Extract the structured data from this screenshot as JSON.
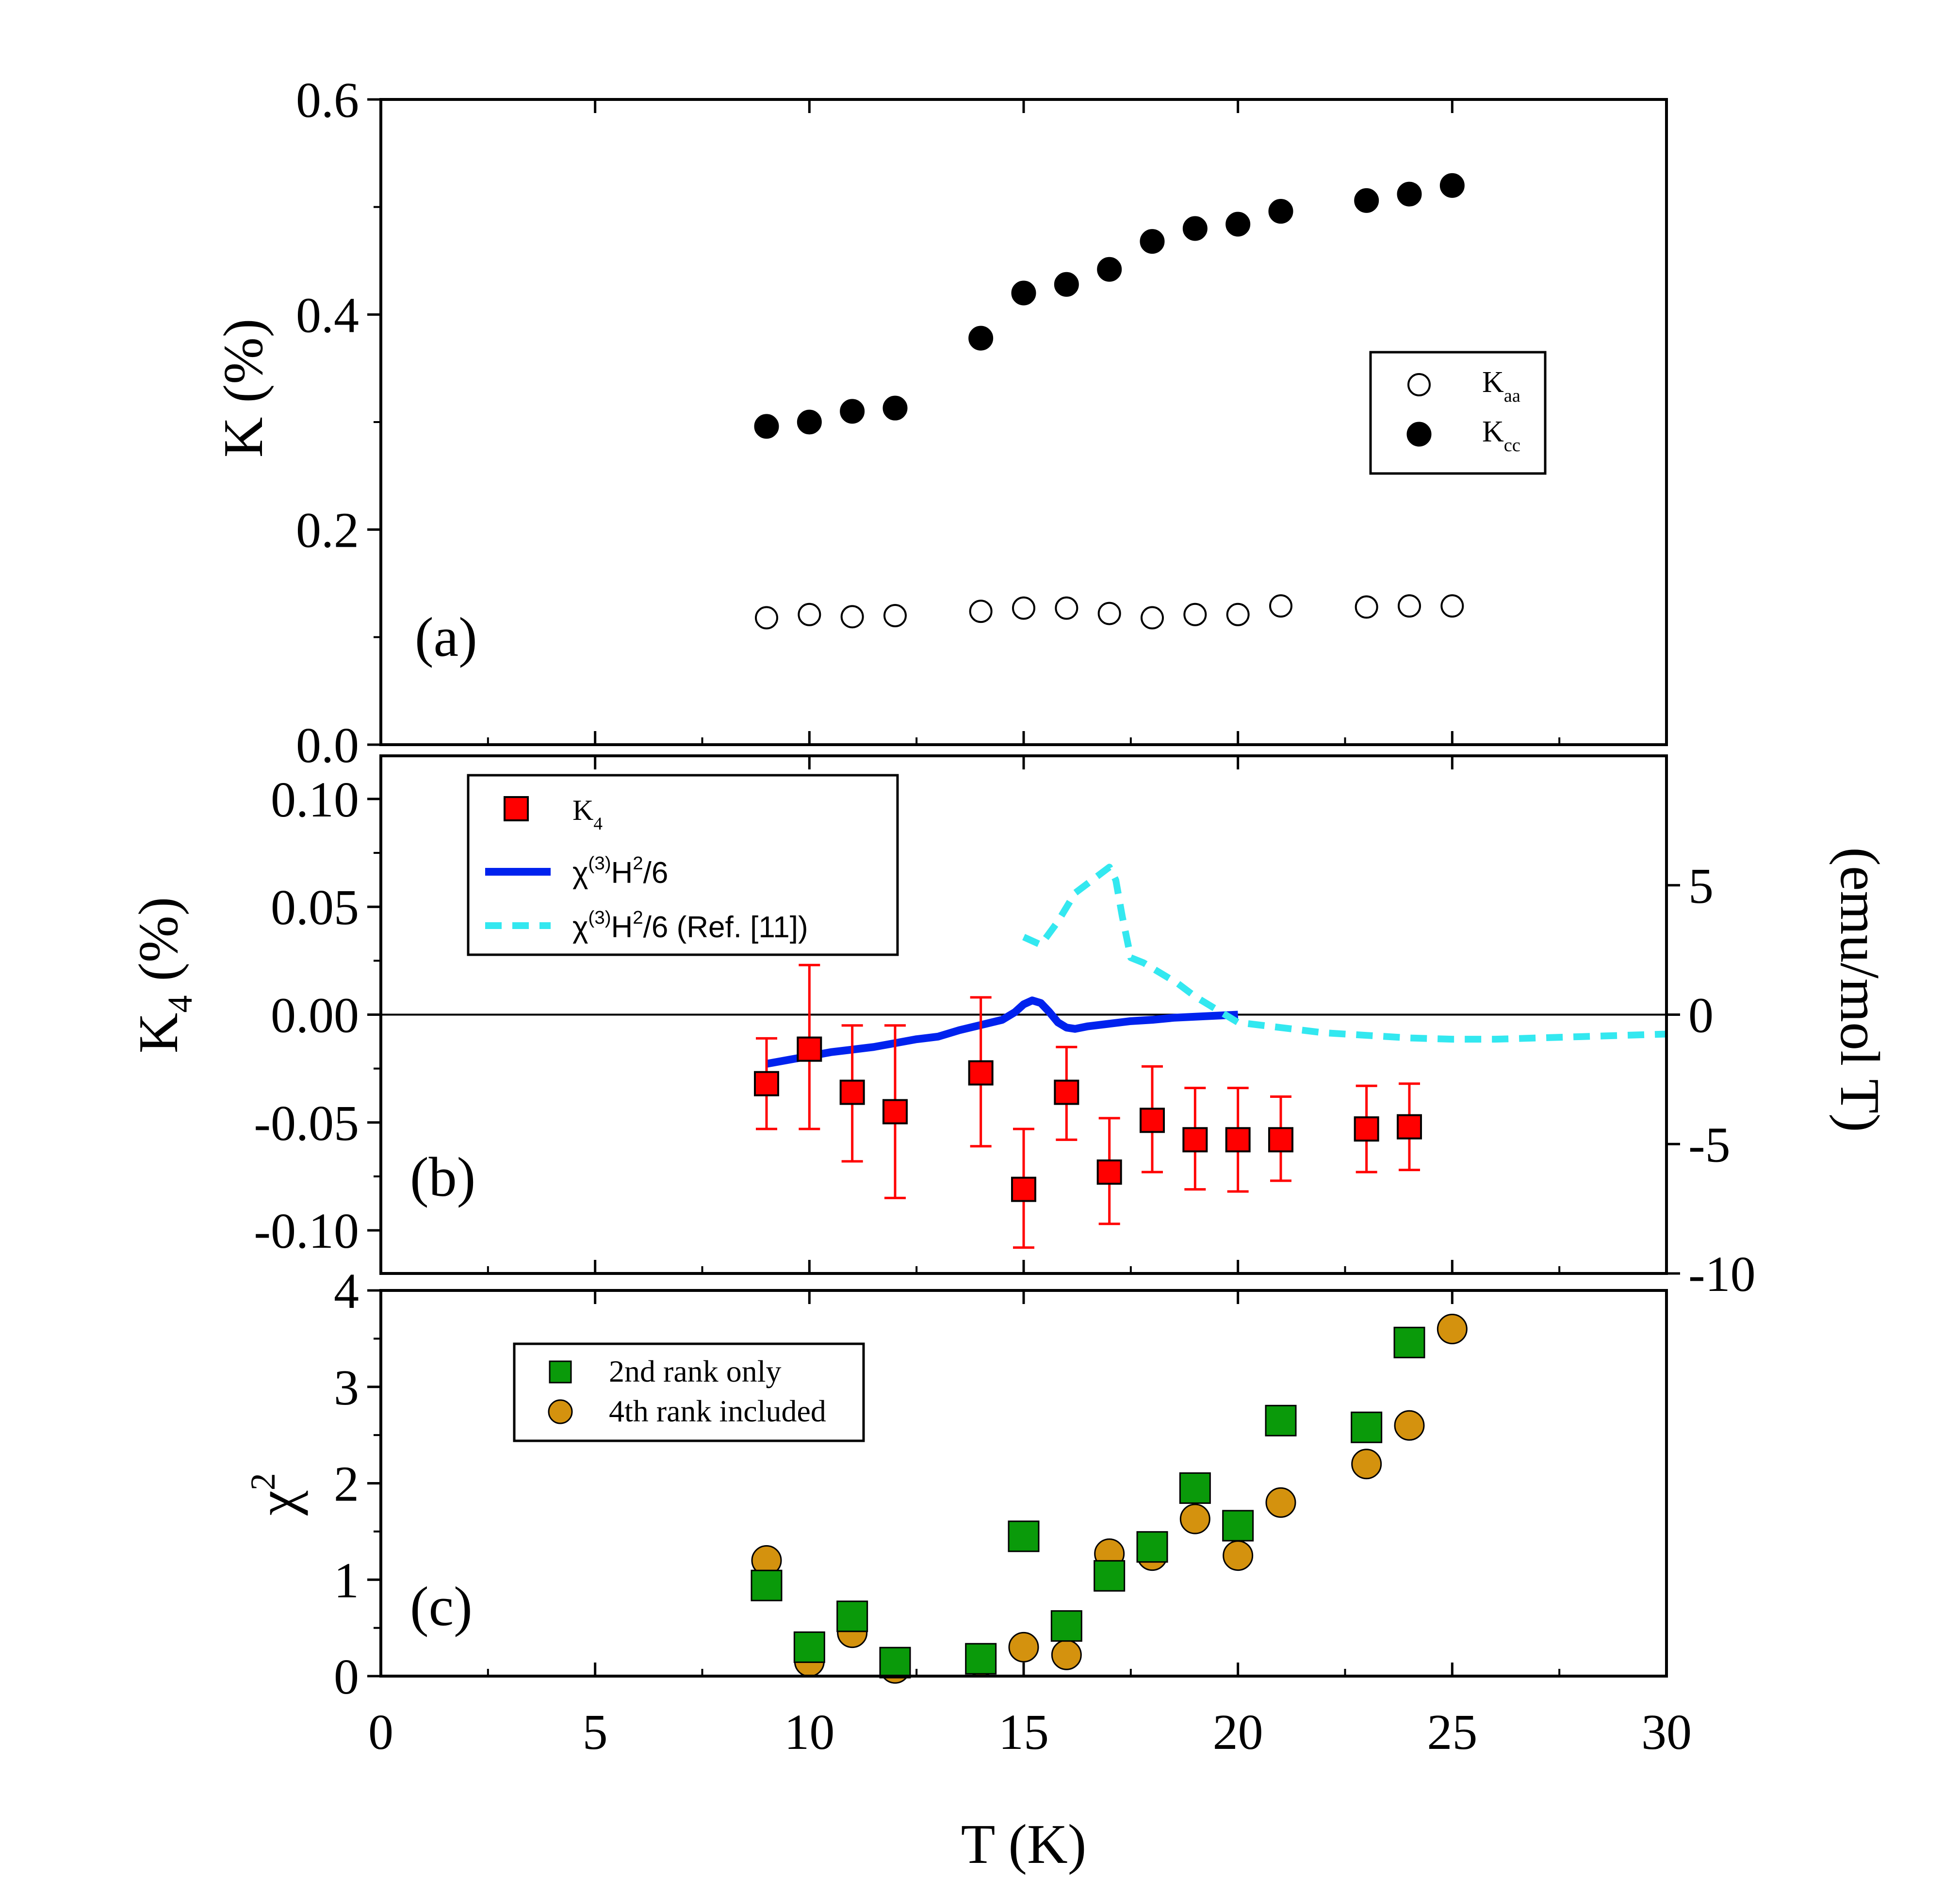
{
  "chart_data": [
    {
      "id": "a",
      "type": "scatter",
      "panel_label": "(a)",
      "ylabel": "K (%)",
      "ylim": [
        0,
        0.6
      ],
      "yticks": [
        0.0,
        0.2,
        0.4,
        0.6
      ],
      "ytick_labels": [
        "0.0",
        "0.2",
        "0.4",
        "0.6"
      ],
      "x": [
        9,
        10,
        11,
        12,
        14,
        15,
        16,
        17,
        18,
        19,
        20,
        21,
        23,
        24,
        25
      ],
      "legend_position": "right",
      "series": [
        {
          "name": "Kaa",
          "symbol": "K",
          "subscript": "aa",
          "marker": "open-circle",
          "values": [
            0.118,
            0.121,
            0.119,
            0.12,
            0.124,
            0.127,
            0.127,
            0.122,
            0.118,
            0.121,
            0.121,
            0.129,
            0.128,
            0.129,
            0.129
          ]
        },
        {
          "name": "Kcc",
          "symbol": "K",
          "subscript": "cc",
          "marker": "filled-circle",
          "values": [
            0.296,
            0.3,
            0.31,
            0.313,
            0.378,
            0.42,
            0.428,
            0.442,
            0.468,
            0.48,
            0.484,
            0.496,
            0.506,
            0.512,
            0.52
          ]
        }
      ]
    },
    {
      "id": "b",
      "type": "scatter",
      "panel_label": "(b)",
      "ylabel": "K4 (%)",
      "ylabel_main": "K",
      "ylabel_sub": "4",
      "ylabel_tail": " (%)",
      "ylim": [
        -0.12,
        0.12
      ],
      "yticks": [
        -0.1,
        -0.05,
        0.0,
        0.05,
        0.1
      ],
      "ytick_labels": [
        "-0.10",
        "-0.05",
        "0.00",
        "0.05",
        "0.10"
      ],
      "y2label": "(emu/mol T)",
      "y2lim": [
        -10,
        10
      ],
      "y2ticks": [
        -10,
        -5,
        0,
        5
      ],
      "y2tick_labels": [
        "-10",
        "-5",
        "0",
        "5"
      ],
      "legend_position": "top-left",
      "series": [
        {
          "name": "K4",
          "symbol": "K",
          "subscript": "4",
          "marker": "red-square",
          "color": "#ff0000",
          "x": [
            9,
            10,
            11,
            12,
            14,
            15,
            16,
            17,
            18,
            19,
            20,
            21,
            23,
            24
          ],
          "values": [
            -0.032,
            -0.016,
            -0.036,
            -0.045,
            -0.027,
            -0.081,
            -0.036,
            -0.073,
            -0.049,
            -0.058,
            -0.058,
            -0.058,
            -0.053,
            -0.052
          ],
          "err_low": [
            -0.053,
            -0.053,
            -0.068,
            -0.085,
            -0.061,
            -0.108,
            -0.058,
            -0.097,
            -0.073,
            -0.081,
            -0.082,
            -0.077,
            -0.073,
            -0.072
          ],
          "err_high": [
            -0.011,
            0.023,
            -0.005,
            -0.005,
            0.008,
            -0.053,
            -0.015,
            -0.048,
            -0.024,
            -0.034,
            -0.034,
            -0.038,
            -0.033,
            -0.032
          ]
        },
        {
          "name": "χ(3)H2/6",
          "marker": "solid-line",
          "color": "#0022ee",
          "axis": "right",
          "x": [
            9,
            9.5,
            10,
            10.5,
            11,
            11.5,
            12,
            12.5,
            13,
            13.5,
            14,
            14.5,
            14.8,
            15,
            15.2,
            15.4,
            15.6,
            15.8,
            16,
            16.2,
            16.5,
            17,
            17.5,
            18,
            18.5,
            19,
            19.5,
            20
          ],
          "values": [
            -1.9,
            -1.75,
            -1.6,
            -1.45,
            -1.35,
            -1.25,
            -1.1,
            -0.95,
            -0.85,
            -0.6,
            -0.4,
            -0.2,
            0.1,
            0.4,
            0.55,
            0.45,
            0.1,
            -0.3,
            -0.5,
            -0.55,
            -0.45,
            -0.35,
            -0.25,
            -0.2,
            -0.12,
            -0.08,
            -0.04,
            0.0
          ]
        },
        {
          "name": "χ(3)H2/6 (Ref. [11])",
          "marker": "dashed-line",
          "color": "#33e8f0",
          "axis": "right",
          "x": [
            15,
            15.4,
            15.8,
            16.2,
            16.6,
            17,
            17.15,
            17.3,
            17.5,
            17.8,
            18.2,
            18.6,
            19,
            19.5,
            20,
            21,
            22,
            23,
            24,
            25,
            26,
            27,
            28,
            29,
            30
          ],
          "values": [
            3.0,
            2.7,
            3.6,
            4.7,
            5.2,
            5.7,
            5.2,
            3.8,
            2.2,
            2.0,
            1.6,
            1.2,
            0.7,
            0.2,
            -0.3,
            -0.5,
            -0.7,
            -0.8,
            -0.9,
            -0.95,
            -0.95,
            -0.9,
            -0.85,
            -0.8,
            -0.75
          ]
        }
      ],
      "legend": [
        {
          "symbol": "K",
          "sub": "4"
        },
        {
          "a": "χ",
          "sup1": "(3)",
          "b": "H",
          "sup2": "2",
          "c": "/6"
        },
        {
          "a": "χ",
          "sup1": "(3)",
          "b": "H",
          "sup2": "2",
          "c": "/6 (Ref. [11])"
        }
      ]
    },
    {
      "id": "c",
      "type": "scatter",
      "panel_label": "(c)",
      "ylabel": "χ2",
      "ylabel_main": "χ",
      "ylabel_sup": "2",
      "ylim": [
        0,
        4
      ],
      "yticks": [
        0,
        1,
        2,
        3,
        4
      ],
      "ytick_labels": [
        "0",
        "1",
        "2",
        "3",
        "4"
      ],
      "xlabel": "T (K)",
      "xlim": [
        0,
        30
      ],
      "xticks": [
        0,
        5,
        10,
        15,
        20,
        25,
        30
      ],
      "xtick_labels": [
        "0",
        "5",
        "10",
        "15",
        "20",
        "25",
        "30"
      ],
      "legend_position": "top-left",
      "series": [
        {
          "name": "4th rank included",
          "marker": "orange-circle",
          "color": "#d4920e",
          "x": [
            9,
            10,
            11,
            12,
            14,
            15,
            16,
            17,
            18,
            19,
            20,
            21,
            23,
            24,
            25
          ],
          "values": [
            1.2,
            0.15,
            0.45,
            0.08,
            0.15,
            0.3,
            0.22,
            1.27,
            1.25,
            1.63,
            1.25,
            1.8,
            2.2,
            2.6,
            3.6
          ]
        },
        {
          "name": "2nd rank only",
          "marker": "green-square",
          "color": "#0a9a0a",
          "x": [
            9,
            10,
            11,
            12,
            14,
            15,
            16,
            17,
            18,
            19,
            20,
            21,
            23,
            24
          ],
          "values": [
            0.94,
            0.3,
            0.62,
            0.14,
            0.18,
            1.45,
            0.52,
            1.04,
            1.34,
            1.95,
            1.56,
            2.65,
            2.58,
            3.46
          ]
        }
      ]
    }
  ]
}
